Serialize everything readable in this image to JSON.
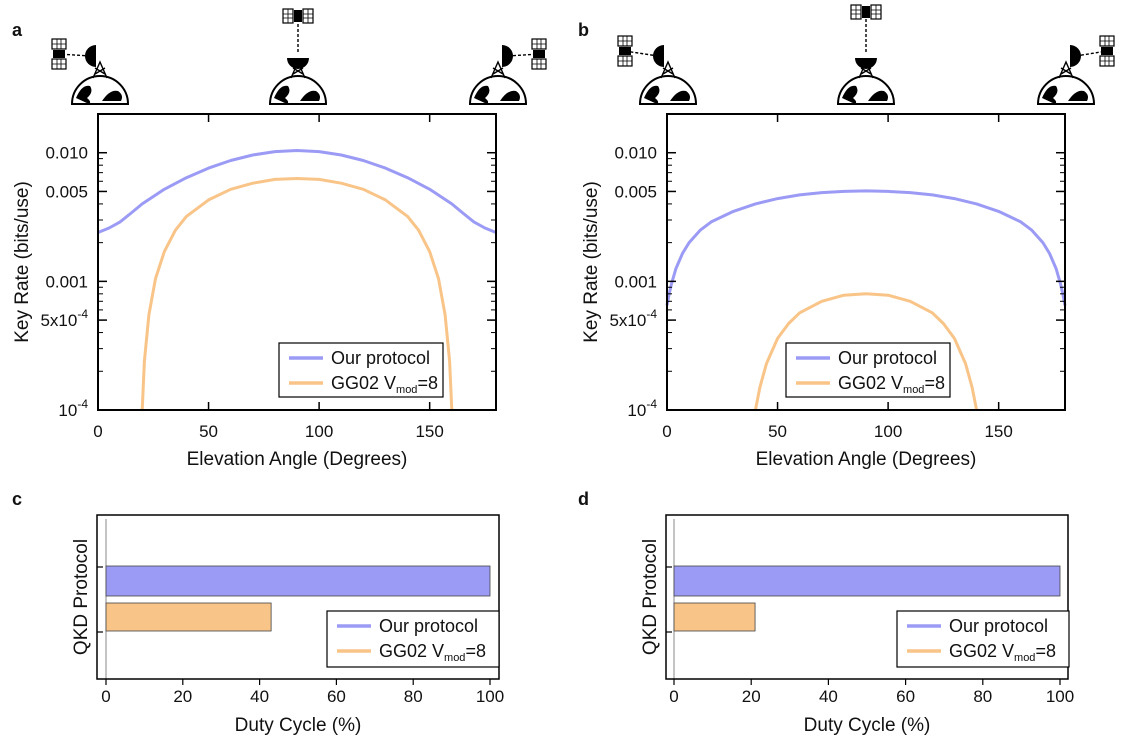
{
  "colors": {
    "our_protocol": "#9b9bf5",
    "gg02": "#f9c488",
    "axes": "#000000"
  },
  "icons": [
    "satellite-icon",
    "ground-station-icon",
    "globe-icon"
  ],
  "legend": {
    "our_protocol": "Our protocol",
    "gg02_prefix": "GG02 V",
    "gg02_sub": "mod",
    "gg02_suffix": "=8"
  },
  "chart_data": [
    {
      "panel": "a",
      "type": "line",
      "xlabel": "Elevation Angle (Degrees)",
      "ylabel": "Key Rate (bits/use)",
      "xlim": [
        0,
        180
      ],
      "ylim": [
        0.0001,
        0.02
      ],
      "yscale": "log",
      "xticks": [
        "0",
        "50",
        "100",
        "150"
      ],
      "yticks": [
        "0.010",
        "0.005",
        "0.001",
        "5x10",
        "10"
      ],
      "ytick_sups": [
        "",
        "",
        "",
        "-4",
        "-4"
      ],
      "legend_position": "bottom-right",
      "series": [
        {
          "name": "Our protocol",
          "x": [
            0,
            5,
            10,
            15,
            20,
            30,
            40,
            50,
            60,
            70,
            80,
            90,
            100,
            110,
            120,
            130,
            140,
            150,
            160,
            165,
            170,
            175,
            180
          ],
          "y": [
            0.0024,
            0.0026,
            0.0029,
            0.0034,
            0.004,
            0.0052,
            0.0064,
            0.0076,
            0.0087,
            0.0096,
            0.0102,
            0.0104,
            0.0102,
            0.0096,
            0.0087,
            0.0076,
            0.0064,
            0.0052,
            0.004,
            0.0034,
            0.0029,
            0.0026,
            0.0024
          ]
        },
        {
          "name": "GG02 Vmod=8",
          "x": [
            20,
            21,
            23,
            26,
            30,
            35,
            40,
            50,
            60,
            70,
            80,
            90,
            100,
            110,
            120,
            130,
            140,
            145,
            150,
            154,
            157,
            159,
            160
          ],
          "y": [
            0.0001,
            0.00024,
            0.00055,
            0.00105,
            0.0017,
            0.0025,
            0.0032,
            0.0043,
            0.0052,
            0.0058,
            0.0062,
            0.0063,
            0.0062,
            0.0058,
            0.0052,
            0.0043,
            0.0032,
            0.0025,
            0.0017,
            0.00105,
            0.00055,
            0.00024,
            0.0001
          ]
        }
      ]
    },
    {
      "panel": "b",
      "type": "line",
      "xlabel": "Elevation Angle (Degrees)",
      "ylabel": "Key Rate (bits/use)",
      "xlim": [
        0,
        180
      ],
      "ylim": [
        0.0001,
        0.02
      ],
      "yscale": "log",
      "xticks": [
        "0",
        "50",
        "100",
        "150"
      ],
      "yticks": [
        "0.010",
        "0.005",
        "0.001",
        "5x10",
        "10"
      ],
      "ytick_sups": [
        "",
        "",
        "",
        "-4",
        "-4"
      ],
      "legend_position": "bottom-right",
      "series": [
        {
          "name": "Our protocol",
          "x": [
            0,
            1,
            2,
            4,
            7,
            10,
            15,
            20,
            30,
            40,
            50,
            60,
            70,
            80,
            90,
            100,
            110,
            120,
            130,
            140,
            150,
            160,
            165,
            170,
            173,
            176,
            178,
            179,
            180
          ],
          "y": [
            0.00065,
            0.0008,
            0.00095,
            0.00125,
            0.00165,
            0.002,
            0.0025,
            0.0029,
            0.0035,
            0.004,
            0.0044,
            0.0047,
            0.0049,
            0.005,
            0.00505,
            0.005,
            0.0049,
            0.0047,
            0.0044,
            0.004,
            0.0035,
            0.0029,
            0.0025,
            0.002,
            0.00165,
            0.00125,
            0.00095,
            0.0008,
            0.00065
          ]
        },
        {
          "name": "GG02 Vmod=8",
          "x": [
            40,
            42,
            45,
            50,
            55,
            60,
            70,
            80,
            90,
            100,
            110,
            120,
            125,
            130,
            135,
            138,
            140
          ],
          "y": [
            0.0001,
            0.00015,
            0.00023,
            0.00036,
            0.00047,
            0.00057,
            0.0007,
            0.00078,
            0.0008,
            0.00078,
            0.0007,
            0.00057,
            0.00047,
            0.00036,
            0.00023,
            0.00015,
            0.0001
          ]
        }
      ]
    },
    {
      "panel": "c",
      "type": "bar",
      "orientation": "horizontal",
      "xlabel": "Duty Cycle (%)",
      "ylabel": "QKD Protocol",
      "xlim": [
        0,
        100
      ],
      "xticks": [
        "0",
        "20",
        "40",
        "60",
        "80",
        "100"
      ],
      "legend_position": "bottom-right",
      "categories": [
        "Our protocol",
        "GG02 Vmod=8"
      ],
      "values": [
        100,
        43
      ]
    },
    {
      "panel": "d",
      "type": "bar",
      "orientation": "horizontal",
      "xlabel": "Duty Cycle (%)",
      "ylabel": "QKD Protocol",
      "xlim": [
        0,
        100
      ],
      "xticks": [
        "0",
        "20",
        "40",
        "60",
        "80",
        "100"
      ],
      "legend_position": "bottom-right",
      "categories": [
        "Our protocol",
        "GG02 Vmod=8"
      ],
      "values": [
        100,
        21
      ]
    }
  ]
}
